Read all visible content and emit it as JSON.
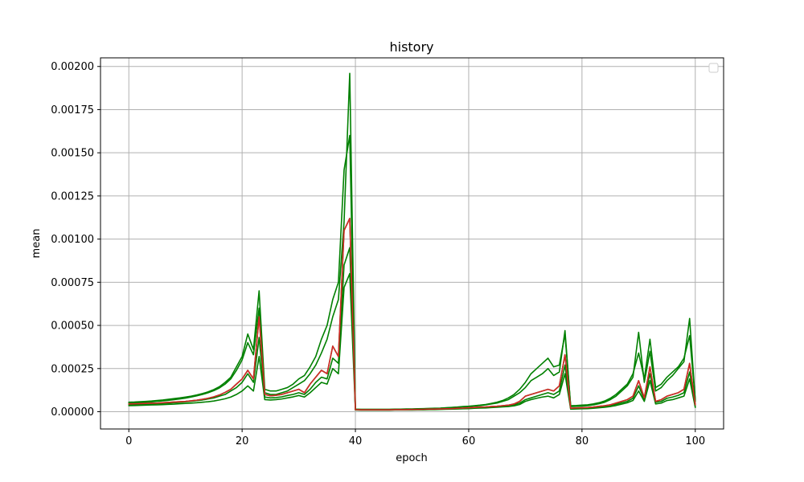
{
  "chart_data": {
    "type": "line",
    "title": "history",
    "xlabel": "epoch",
    "ylabel": "mean",
    "xlim": [
      -5,
      105
    ],
    "ylim": [
      -0.0001,
      0.00205
    ],
    "xticks": [
      0,
      20,
      40,
      60,
      80,
      100
    ],
    "xtick_labels": [
      "0",
      "20",
      "40",
      "60",
      "80",
      "100"
    ],
    "yticks": [
      0,
      0.00025,
      0.0005,
      0.00075,
      0.001,
      0.00125,
      0.0015,
      0.00175,
      0.002
    ],
    "ytick_labels": [
      "0.00000",
      "0.00025",
      "0.00050",
      "0.00075",
      "0.00100",
      "0.00125",
      "0.00150",
      "0.00175",
      "0.00200"
    ],
    "grid": true,
    "legend": {
      "placement": "top-right",
      "entries": []
    },
    "x": [
      0,
      1,
      2,
      3,
      4,
      5,
      6,
      7,
      8,
      9,
      10,
      11,
      12,
      13,
      14,
      15,
      16,
      17,
      18,
      19,
      20,
      21,
      22,
      23,
      24,
      25,
      26,
      27,
      28,
      29,
      30,
      31,
      32,
      33,
      34,
      35,
      36,
      37,
      38,
      39,
      40,
      41,
      42,
      43,
      44,
      45,
      46,
      47,
      48,
      49,
      50,
      51,
      52,
      53,
      54,
      55,
      56,
      57,
      58,
      59,
      60,
      61,
      62,
      63,
      64,
      65,
      66,
      67,
      68,
      69,
      70,
      71,
      72,
      73,
      74,
      75,
      76,
      77,
      78,
      79,
      80,
      81,
      82,
      83,
      84,
      85,
      86,
      87,
      88,
      89,
      90,
      91,
      92,
      93,
      94,
      95,
      96,
      97,
      98,
      99,
      100
    ],
    "series": [
      {
        "values": [
          4.5e-05,
          4.6e-05,
          4.7e-05,
          4.8e-05,
          4.9e-05,
          5e-05,
          5.2e-05,
          5.4e-05,
          5.6e-05,
          5.8e-05,
          6e-05,
          6.3e-05,
          6.7e-05,
          7.2e-05,
          7.8e-05,
          8.6e-05,
          9.7e-05,
          0.000112,
          0.00013,
          0.00016,
          0.00019,
          0.00024,
          0.00019,
          0.00055,
          0.0001,
          9.2e-05,
          9.5e-05,
          0.0001,
          0.00011,
          0.00012,
          0.00013,
          0.00011,
          0.00016,
          0.0002,
          0.00024,
          0.00022,
          0.00038,
          0.00032,
          0.00105,
          0.00112,
          1.2e-05,
          1.1e-05,
          1.1e-05,
          1.1e-05,
          1.1e-05,
          1.1e-05,
          1.1e-05,
          1.2e-05,
          1.2e-05,
          1.2e-05,
          1.3e-05,
          1.3e-05,
          1.4e-05,
          1.5e-05,
          1.5e-05,
          1.6e-05,
          1.7e-05,
          1.8e-05,
          2e-05,
          2.1e-05,
          2.3e-05,
          2.5e-05,
          2.7e-05,
          2.8e-05,
          3e-05,
          3.2e-05,
          3.5e-05,
          3.8e-05,
          4.5e-05,
          6e-05,
          9e-05,
          0.0001,
          0.00011,
          0.00012,
          0.00013,
          0.00012,
          0.00015,
          0.00033,
          2e-05,
          2.2e-05,
          2.3e-05,
          2.4e-05,
          2.7e-05,
          3.1e-05,
          3.5e-05,
          4e-05,
          5e-05,
          6e-05,
          7e-05,
          9e-05,
          0.00018,
          8e-05,
          0.00026,
          6e-05,
          7e-05,
          9e-05,
          0.0001,
          0.00011,
          0.00013,
          0.00028,
          4e-05
        ]
      },
      {
        "values": [
          5.5e-05,
          5.6e-05,
          5.8e-05,
          6e-05,
          6.2e-05,
          6.5e-05,
          6.8e-05,
          7.2e-05,
          7.6e-05,
          8e-05,
          8.5e-05,
          9e-05,
          9.7e-05,
          0.000105,
          0.000115,
          0.000128,
          0.000145,
          0.00017,
          0.0002,
          0.00026,
          0.00032,
          0.00045,
          0.00036,
          0.0007,
          0.00013,
          0.00012,
          0.00012,
          0.00013,
          0.00014,
          0.00016,
          0.00019,
          0.00021,
          0.00026,
          0.00032,
          0.00042,
          0.0005,
          0.00065,
          0.00075,
          0.0014,
          0.0016,
          1.5e-05,
          1.4e-05,
          1.4e-05,
          1.4e-05,
          1.4e-05,
          1.4e-05,
          1.4e-05,
          1.5e-05,
          1.5e-05,
          1.6e-05,
          1.6e-05,
          1.7e-05,
          1.8e-05,
          1.9e-05,
          2e-05,
          2.1e-05,
          2.3e-05,
          2.5e-05,
          2.7e-05,
          3e-05,
          3.2e-05,
          3.5e-05,
          3.8e-05,
          4.2e-05,
          4.8e-05,
          5.5e-05,
          6.5e-05,
          8e-05,
          0.0001,
          0.00013,
          0.00017,
          0.00022,
          0.00025,
          0.00028,
          0.00031,
          0.00026,
          0.00027,
          0.00045,
          3.5e-05,
          3.6e-05,
          3.8e-05,
          4e-05,
          4.5e-05,
          5.2e-05,
          6.2e-05,
          7.8e-05,
          0.0001,
          0.00013,
          0.00016,
          0.00022,
          0.00034,
          0.00019,
          0.00042,
          0.00014,
          0.00016,
          0.0002,
          0.00023,
          0.00026,
          0.00031,
          0.00044,
          7e-05
        ]
      },
      {
        "values": [
          3.5e-05,
          3.6e-05,
          3.7e-05,
          3.8e-05,
          3.9e-05,
          4e-05,
          4.1e-05,
          4.3e-05,
          4.4e-05,
          4.6e-05,
          4.8e-05,
          5e-05,
          5.2e-05,
          5.5e-05,
          5.8e-05,
          6.2e-05,
          6.8e-05,
          7.5e-05,
          8.5e-05,
          0.0001,
          0.00012,
          0.00015,
          0.00012,
          0.00032,
          7e-05,
          6.8e-05,
          7e-05,
          7.4e-05,
          8e-05,
          8.6e-05,
          9.4e-05,
          8.5e-05,
          0.00011,
          0.00014,
          0.00017,
          0.00016,
          0.00025,
          0.00022,
          0.00072,
          0.0008,
          1e-05,
          9e-06,
          9e-06,
          9e-06,
          9e-06,
          9e-06,
          9e-06,
          1e-05,
          1e-05,
          1e-05,
          1e-05,
          1.1e-05,
          1.1e-05,
          1.2e-05,
          1.2e-05,
          1.3e-05,
          1.4e-05,
          1.5e-05,
          1.6e-05,
          1.7e-05,
          1.8e-05,
          2e-05,
          2.1e-05,
          2.2e-05,
          2.4e-05,
          2.6e-05,
          2.8e-05,
          3e-05,
          3.4e-05,
          4.2e-05,
          6e-05,
          7e-05,
          7.8e-05,
          8.5e-05,
          9e-05,
          8e-05,
          0.0001,
          0.00022,
          1.5e-05,
          1.6e-05,
          1.7e-05,
          1.8e-05,
          2e-05,
          2.3e-05,
          2.6e-05,
          3e-05,
          3.6e-05,
          4.4e-05,
          5.2e-05,
          6.5e-05,
          0.00012,
          6e-05,
          0.00018,
          4.5e-05,
          5e-05,
          6.5e-05,
          7e-05,
          8e-05,
          9e-05,
          0.00019,
          2.5e-05
        ]
      },
      {
        "values": [
          5e-05,
          5.1e-05,
          5.3e-05,
          5.5e-05,
          5.7e-05,
          6e-05,
          6.3e-05,
          6.6e-05,
          7e-05,
          7.4e-05,
          7.9e-05,
          8.5e-05,
          9.2e-05,
          0.0001,
          0.00011,
          0.000122,
          0.000138,
          0.00016,
          0.00019,
          0.00024,
          0.0003,
          0.0004,
          0.00033,
          0.0006,
          0.00011,
          0.0001,
          0.0001,
          0.00011,
          0.00012,
          0.00014,
          0.00016,
          0.00018,
          0.00022,
          0.00027,
          0.00034,
          0.00042,
          0.00055,
          0.00065,
          0.0011,
          0.00196,
          1.4e-05,
          1.3e-05,
          1.3e-05,
          1.3e-05,
          1.3e-05,
          1.3e-05,
          1.3e-05,
          1.4e-05,
          1.4e-05,
          1.5e-05,
          1.5e-05,
          1.6e-05,
          1.7e-05,
          1.8e-05,
          1.9e-05,
          2e-05,
          2.2e-05,
          2.4e-05,
          2.6e-05,
          2.8e-05,
          3e-05,
          3.3e-05,
          3.6e-05,
          4e-05,
          4.5e-05,
          5e-05,
          6e-05,
          7e-05,
          9e-05,
          0.00011,
          0.00014,
          0.00018,
          0.0002,
          0.00022,
          0.00025,
          0.00021,
          0.00023,
          0.00047,
          3e-05,
          3.1e-05,
          3.3e-05,
          3.5e-05,
          4e-05,
          4.6e-05,
          5.5e-05,
          7e-05,
          9e-05,
          0.00012,
          0.00015,
          0.0002,
          0.00046,
          0.00017,
          0.00035,
          0.00012,
          0.00014,
          0.00018,
          0.00021,
          0.00025,
          0.00029,
          0.00054,
          6e-05
        ]
      },
      {
        "values": [
          4e-05,
          4.1e-05,
          4.2e-05,
          4.3e-05,
          4.5e-05,
          4.6e-05,
          4.8e-05,
          5e-05,
          5.2e-05,
          5.4e-05,
          5.7e-05,
          6e-05,
          6.4e-05,
          6.8e-05,
          7.4e-05,
          8e-05,
          9e-05,
          0.0001,
          0.00012,
          0.00014,
          0.00017,
          0.00022,
          0.00017,
          0.00043,
          8.5e-05,
          8e-05,
          8.2e-05,
          8.6e-05,
          9.4e-05,
          0.0001,
          0.00011,
          0.0001,
          0.00013,
          0.00017,
          0.0002,
          0.00019,
          0.00031,
          0.00028,
          0.00085,
          0.00095,
          1.1e-05,
          1e-05,
          1e-05,
          1e-05,
          1e-05,
          1e-05,
          1e-05,
          1.1e-05,
          1.1e-05,
          1.1e-05,
          1.2e-05,
          1.2e-05,
          1.3e-05,
          1.3e-05,
          1.4e-05,
          1.5e-05,
          1.6e-05,
          1.7e-05,
          1.8e-05,
          1.9e-05,
          2.1e-05,
          2.2e-05,
          2.4e-05,
          2.6e-05,
          2.8e-05,
          3e-05,
          3.2e-05,
          3.5e-05,
          4e-05,
          5e-05,
          7e-05,
          8e-05,
          9e-05,
          0.0001,
          0.00011,
          0.0001,
          0.00012,
          0.00027,
          1.8e-05,
          1.9e-05,
          2e-05,
          2.2e-05,
          2.4e-05,
          2.8e-05,
          3.2e-05,
          3.6e-05,
          4.3e-05,
          5.2e-05,
          6e-05,
          7.8e-05,
          0.00015,
          7e-05,
          0.00022,
          5.5e-05,
          6e-05,
          7.8e-05,
          8.5e-05,
          9.5e-05,
          0.00011,
          0.00023,
          3e-05
        ]
      },
      {
        "values": [
          4.5e-05,
          4.6e-05,
          4.7e-05,
          4.8e-05,
          4.9e-05,
          5e-05,
          5.2e-05,
          5.4e-05,
          5.6e-05,
          5.8e-05,
          6e-05,
          6.3e-05,
          6.7e-05,
          7.2e-05,
          7.8e-05,
          8.6e-05,
          9.7e-05,
          0.000112,
          0.00013,
          0.00016,
          0.00019,
          0.00024,
          0.00019,
          0.00055,
          0.0001,
          9.2e-05,
          9.5e-05,
          0.0001,
          0.00011,
          0.00012,
          0.00013,
          0.00011,
          0.00016,
          0.0002,
          0.00024,
          0.00022,
          0.00038,
          0.00032,
          0.00105,
          0.00112,
          1.2e-05,
          1.1e-05,
          1.1e-05,
          1.1e-05,
          1.1e-05,
          1.1e-05,
          1.1e-05,
          1.2e-05,
          1.2e-05,
          1.2e-05,
          1.3e-05,
          1.3e-05,
          1.4e-05,
          1.5e-05,
          1.5e-05,
          1.6e-05,
          1.7e-05,
          1.8e-05,
          2e-05,
          2.1e-05,
          2.3e-05,
          2.5e-05,
          2.7e-05,
          2.8e-05,
          3e-05,
          3.2e-05,
          3.5e-05,
          3.8e-05,
          4.5e-05,
          6e-05,
          9e-05,
          0.0001,
          0.00011,
          0.00012,
          0.00013,
          0.00012,
          0.00015,
          0.00033,
          2e-05,
          2.2e-05,
          2.3e-05,
          2.4e-05,
          2.7e-05,
          3.1e-05,
          3.5e-05,
          4e-05,
          5e-05,
          6e-05,
          7e-05,
          9e-05,
          0.00018,
          8e-05,
          0.00026,
          6e-05,
          7e-05,
          9e-05,
          0.0001,
          0.00011,
          0.00013,
          0.00028,
          4e-05
        ]
      }
    ],
    "colors": {
      "series": [
        "#008000",
        "#008000",
        "#008000",
        "#008000",
        "#008000",
        "#d62728"
      ],
      "grid": "#b0b0b0",
      "axes": "#000000",
      "background": "#ffffff",
      "legend_border": "#cccccc"
    }
  }
}
